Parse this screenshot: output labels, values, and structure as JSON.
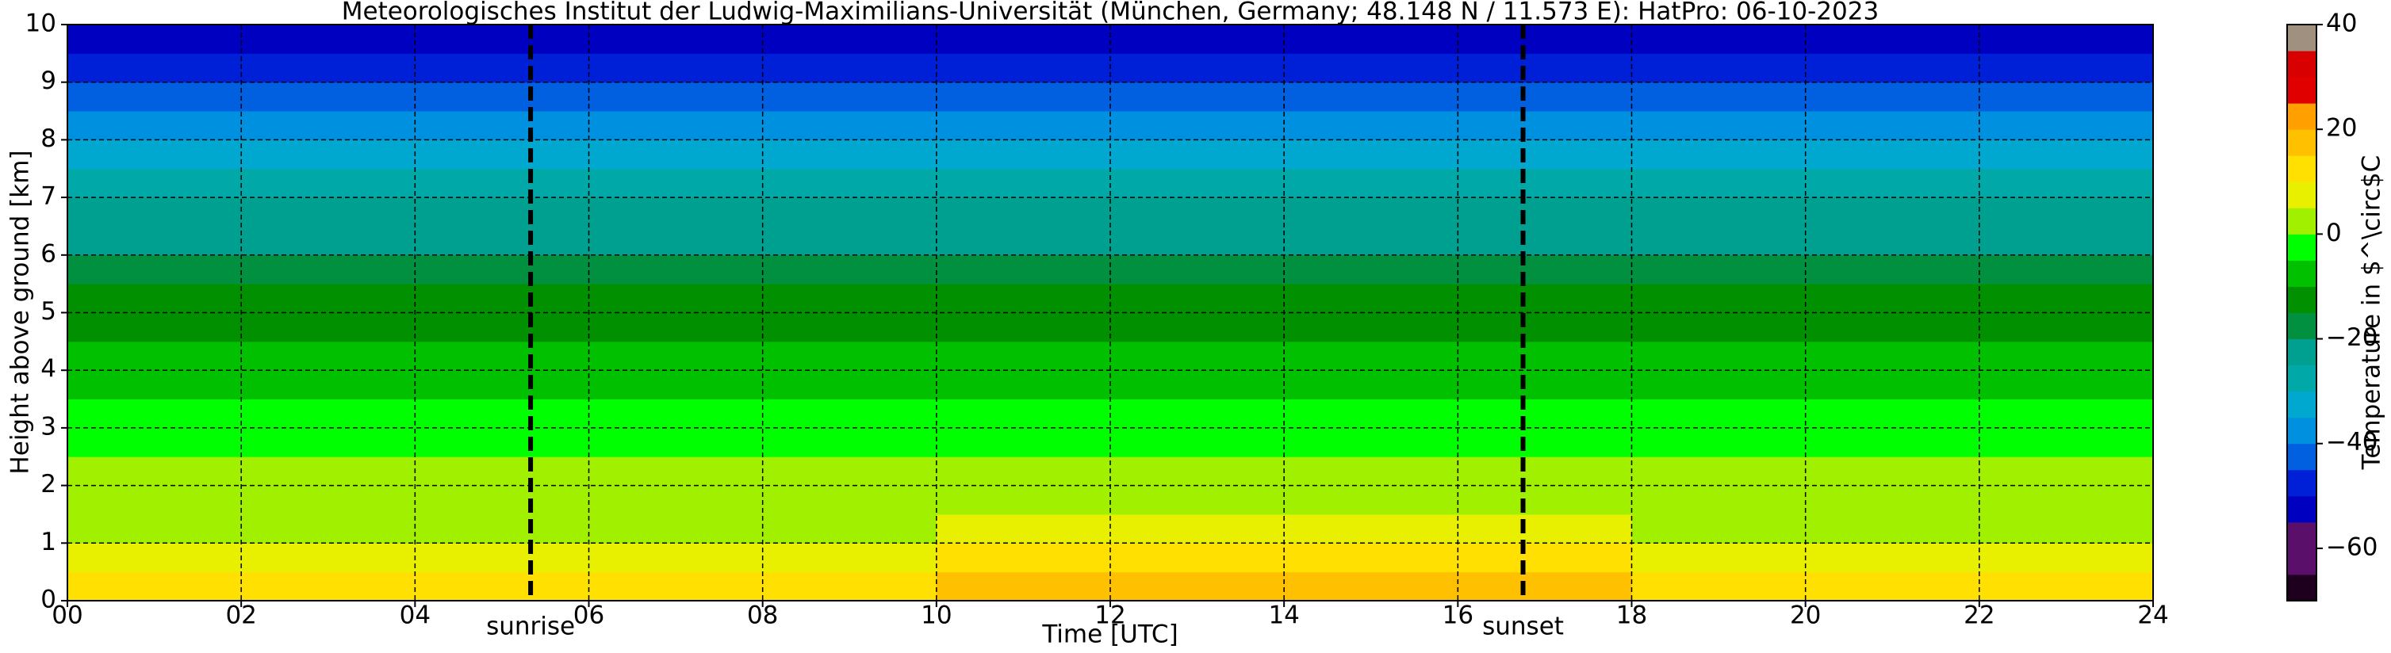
{
  "chart_data": {
    "type": "heatmap",
    "title": "Meteorologisches Institut der Ludwig-Maximilians-Universität (München, Germany; 48.148 N / 11.573 E):    HatPro: 06-10-2023",
    "x_label": "Time [UTC]",
    "y_label": "Height above ground [km]",
    "colorbar_label": "Temperature in $^\\circ$C",
    "xbins": [
      0,
      2,
      4,
      6,
      8,
      10,
      12,
      14,
      16,
      18,
      20,
      22,
      24
    ],
    "ybins": [
      0,
      0.5,
      1,
      1.5,
      2,
      2.5,
      3,
      3.5,
      4,
      4.5,
      5,
      5.5,
      6,
      6.5,
      7,
      7.5,
      8,
      8.5,
      9,
      9.5,
      10
    ],
    "values": [
      [
        10,
        10,
        10,
        11,
        13,
        16,
        18,
        18,
        17,
        14,
        12,
        11
      ],
      [
        7,
        7,
        7,
        8,
        9,
        11,
        12,
        12,
        11,
        9,
        8,
        8
      ],
      [
        4,
        4,
        4,
        4,
        5,
        6,
        7,
        7,
        6,
        5,
        5,
        4
      ],
      [
        2,
        2,
        2,
        2,
        2,
        2,
        2,
        2,
        2,
        2,
        2,
        2
      ],
      [
        0,
        0,
        0,
        0,
        0,
        0,
        0,
        0,
        0,
        0,
        0,
        0
      ],
      [
        -2,
        -2,
        -2,
        -2,
        -2,
        -2,
        -2,
        -2,
        -2,
        -2,
        -2,
        -2
      ],
      [
        -4,
        -4,
        -4,
        -4,
        -4,
        -4,
        -4,
        -4,
        -4,
        -4,
        -4,
        -4
      ],
      [
        -7,
        -7,
        -7,
        -7,
        -7,
        -7,
        -7,
        -7,
        -7,
        -7,
        -7,
        -7
      ],
      [
        -9,
        -9,
        -9,
        -9,
        -9,
        -9,
        -9,
        -9,
        -9,
        -9,
        -9,
        -9
      ],
      [
        -12,
        -12,
        -12,
        -12,
        -12,
        -12,
        -12,
        -12,
        -12,
        -12,
        -12,
        -12
      ],
      [
        -15,
        -15,
        -15,
        -15,
        -15,
        -15,
        -15,
        -15,
        -15,
        -15,
        -15,
        -15
      ],
      [
        -18,
        -18,
        -18,
        -18,
        -18,
        -18,
        -18,
        -18,
        -18,
        -18,
        -18,
        -18
      ],
      [
        -21,
        -21,
        -21,
        -21,
        -21,
        -21,
        -21,
        -21,
        -21,
        -21,
        -21,
        -21
      ],
      [
        -25,
        -25,
        -25,
        -25,
        -25,
        -25,
        -25,
        -25,
        -25,
        -25,
        -25,
        -25
      ],
      [
        -30,
        -30,
        -30,
        -30,
        -30,
        -30,
        -30,
        -30,
        -30,
        -30,
        -30,
        -30
      ],
      [
        -34,
        -34,
        -34,
        -34,
        -34,
        -34,
        -34,
        -34,
        -34,
        -34,
        -34,
        -34
      ],
      [
        -38,
        -38,
        -38,
        -38,
        -38,
        -38,
        -38,
        -38,
        -38,
        -38,
        -38,
        -38
      ],
      [
        -43,
        -43,
        -43,
        -43,
        -43,
        -43,
        -43,
        -43,
        -43,
        -43,
        -43,
        -43
      ],
      [
        -48,
        -48,
        -48,
        -48,
        -48,
        -48,
        -48,
        -48,
        -48,
        -48,
        -48,
        -48
      ],
      [
        -55,
        -55,
        -55,
        -55,
        -55,
        -55,
        -55,
        -55,
        -55,
        -55,
        -55,
        -55
      ]
    ],
    "xlim": [
      0,
      24
    ],
    "xticks": [
      {
        "value": 0,
        "label": "00"
      },
      {
        "value": 2,
        "label": "02"
      },
      {
        "value": 4,
        "label": "04"
      },
      {
        "value": 6,
        "label": "06"
      },
      {
        "value": 8,
        "label": "08"
      },
      10,
      12,
      14,
      16,
      18,
      20,
      22,
      24
    ],
    "ylim": [
      0,
      10
    ],
    "yticks": [
      0,
      1,
      2,
      3,
      4,
      5,
      6,
      7,
      8,
      9,
      10
    ],
    "zlim": [
      -70,
      40
    ],
    "zticks": [
      {
        "value": -60,
        "label": "−60"
      },
      {
        "value": -40,
        "label": "−40"
      },
      {
        "value": -20,
        "label": "−20"
      },
      0,
      20,
      40
    ],
    "colormap": [
      "#1e001e",
      "#5a0f6a",
      "#5a0f6a",
      "#0000c0",
      "#0020d8",
      "#0060e0",
      "#0090e0",
      "#00a8d0",
      "#00a8a8",
      "#00a090",
      "#009040",
      "#009000",
      "#00c000",
      "#00ff00",
      "#a0f000",
      "#e8f000",
      "#ffe000",
      "#ffc000",
      "#ffa000",
      "#e00000",
      "#d80000",
      "#a09080"
    ],
    "grid": true,
    "annotations": [
      {
        "text": "sunrise",
        "x": 5.33
      },
      {
        "text": "sunset",
        "x": 16.75
      }
    ]
  }
}
